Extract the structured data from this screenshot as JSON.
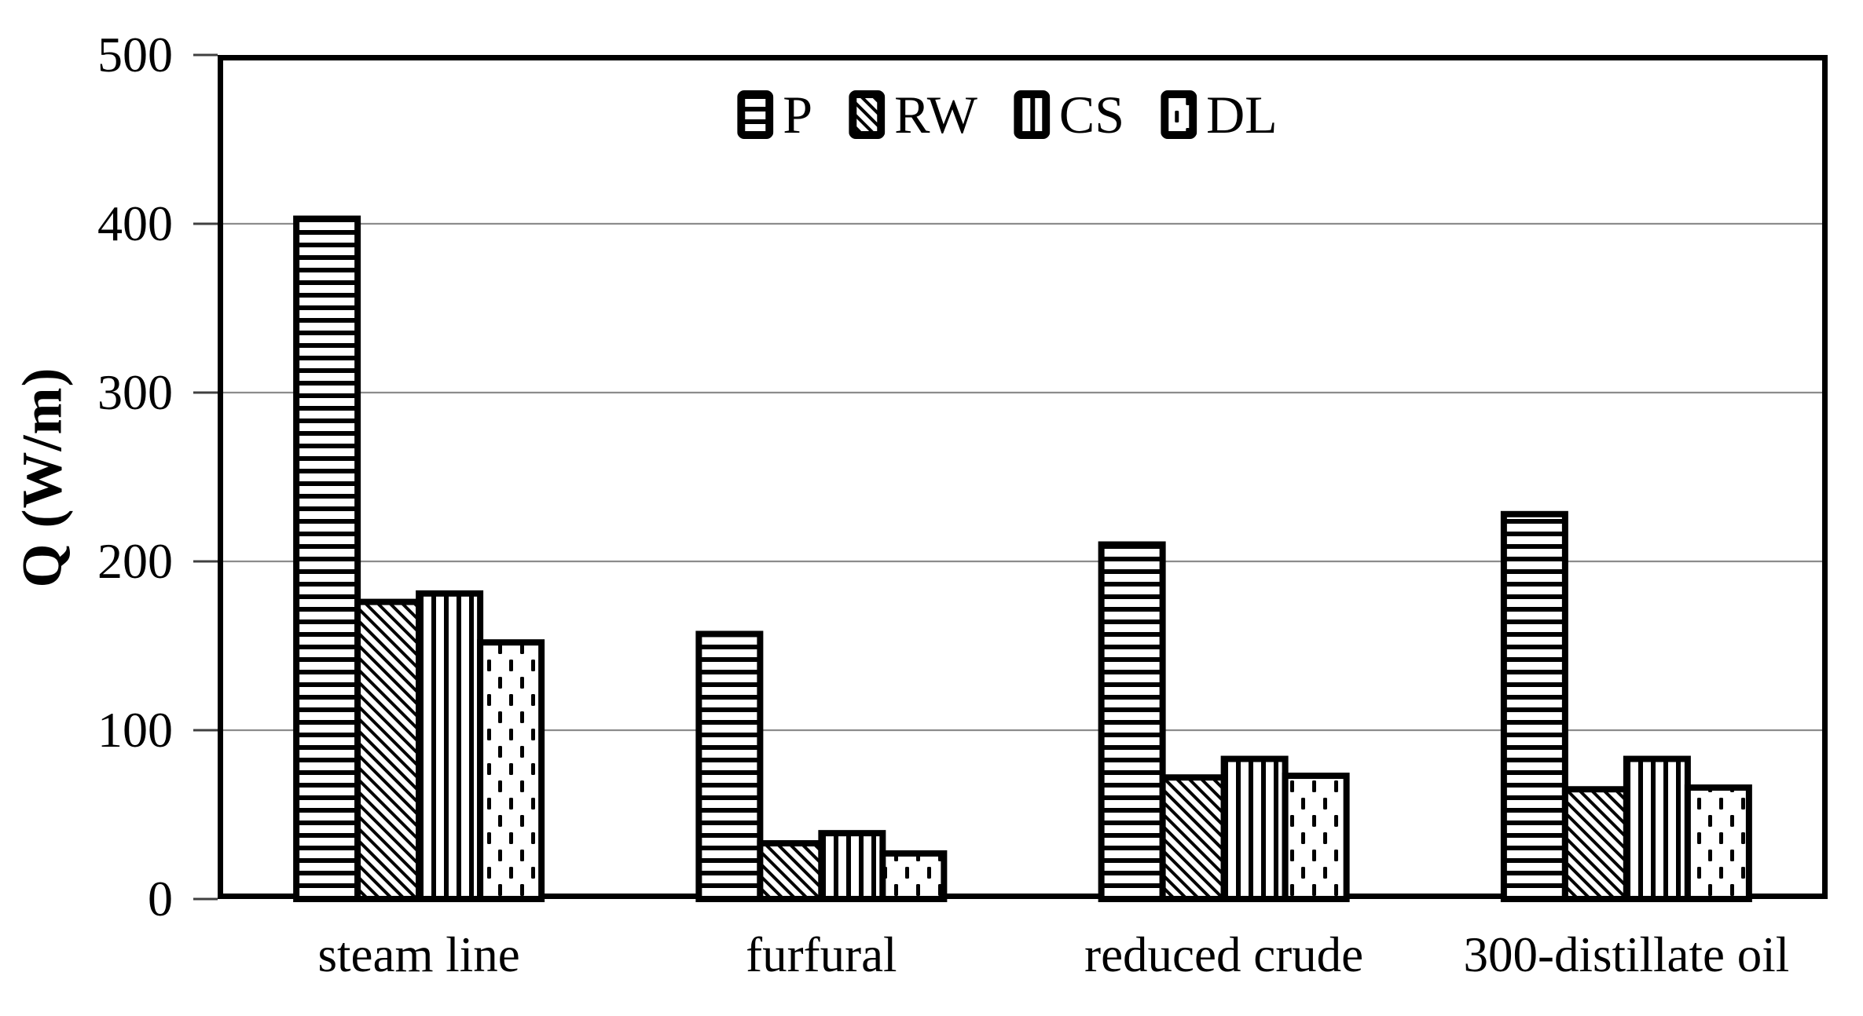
{
  "chart_data": {
    "type": "bar",
    "title": "",
    "ylabel": "Q (W/m)",
    "xlabel": "",
    "ylim": [
      0,
      500
    ],
    "yticks": [
      0,
      100,
      200,
      300,
      400,
      500
    ],
    "grid": true,
    "legend_position": "top-center",
    "categories": [
      "steam line",
      "furfural",
      "reduced crude",
      "300-distillate oil"
    ],
    "series": [
      {
        "name": "P",
        "pattern": "horizontal-lines",
        "values": [
          403,
          157,
          210,
          228
        ]
      },
      {
        "name": "RW",
        "pattern": "diagonal-lines",
        "values": [
          176,
          33,
          72,
          65
        ]
      },
      {
        "name": "CS",
        "pattern": "vertical-lines",
        "values": [
          181,
          39,
          83,
          83
        ]
      },
      {
        "name": "DL",
        "pattern": "dotted",
        "values": [
          152,
          27,
          73,
          66
        ]
      }
    ],
    "colors": {
      "pattern_foreground": "#000000",
      "bar_outline": "#000000",
      "background": "#ffffff",
      "gridline": "#8c8c8c",
      "axis_frame": "#000000",
      "text": "#000000"
    }
  }
}
